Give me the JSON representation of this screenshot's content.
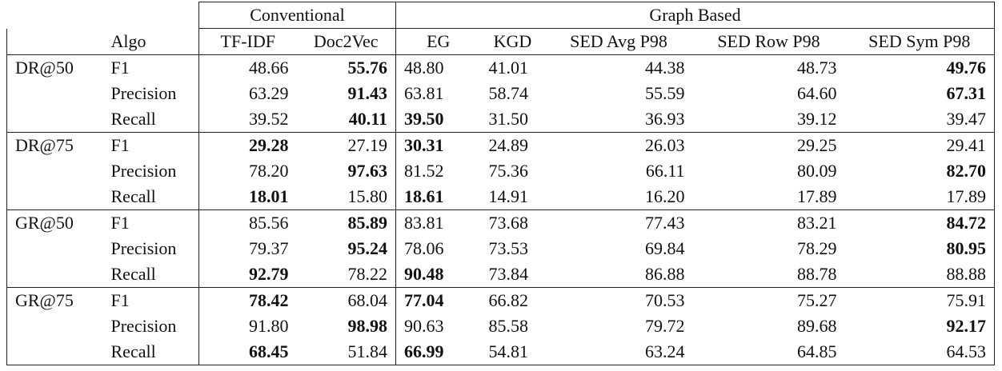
{
  "table": {
    "groups": [
      "Conventional",
      "Graph Based"
    ],
    "group_spans": [
      2,
      5
    ],
    "columns": [
      "Algo",
      "TF-IDF",
      "Doc2Vec",
      "EG",
      "KGD",
      "SED Avg P98",
      "SED Row P98",
      "SED Sym P98"
    ],
    "sections": [
      {
        "label": "DR@50",
        "rows": [
          {
            "metric": "F1",
            "cells": [
              "48.66",
              {
                "text": "55.76",
                "bold": true
              },
              "48.80",
              "41.01",
              "44.38",
              "48.73",
              {
                "text": "49.76",
                "bold": true
              }
            ]
          },
          {
            "metric": "Precision",
            "cells": [
              "63.29",
              {
                "text": "91.43",
                "bold": true
              },
              "63.81",
              "58.74",
              "55.59",
              "64.60",
              {
                "text": "67.31",
                "bold": true
              }
            ]
          },
          {
            "metric": "Recall",
            "cells": [
              "39.52",
              {
                "text": "40.11",
                "bold": true
              },
              {
                "text": "39.50",
                "bold": true
              },
              "31.50",
              "36.93",
              "39.12",
              "39.47"
            ]
          }
        ]
      },
      {
        "label": "DR@75",
        "rows": [
          {
            "metric": "F1",
            "cells": [
              {
                "text": "29.28",
                "bold": true
              },
              "27.19",
              {
                "text": "30.31",
                "bold": true
              },
              "24.89",
              "26.03",
              "29.25",
              "29.41"
            ]
          },
          {
            "metric": "Precision",
            "cells": [
              "78.20",
              {
                "text": "97.63",
                "bold": true
              },
              "81.52",
              "75.36",
              "66.11",
              "80.09",
              {
                "text": "82.70",
                "bold": true
              }
            ]
          },
          {
            "metric": "Recall",
            "cells": [
              {
                "text": "18.01",
                "bold": true
              },
              "15.80",
              {
                "text": "18.61",
                "bold": true
              },
              "14.91",
              "16.20",
              "17.89",
              "17.89"
            ]
          }
        ]
      },
      {
        "label": "GR@50",
        "rows": [
          {
            "metric": "F1",
            "cells": [
              "85.56",
              {
                "text": "85.89",
                "bold": true
              },
              "83.81",
              "73.68",
              "77.43",
              "83.21",
              {
                "text": "84.72",
                "bold": true
              }
            ]
          },
          {
            "metric": "Precision",
            "cells": [
              "79.37",
              {
                "text": "95.24",
                "bold": true
              },
              "78.06",
              "73.53",
              "69.84",
              "78.29",
              {
                "text": "80.95",
                "bold": true
              }
            ]
          },
          {
            "metric": "Recall",
            "cells": [
              {
                "text": "92.79",
                "bold": true
              },
              "78.22",
              {
                "text": "90.48",
                "bold": true
              },
              "73.84",
              "86.88",
              "88.78",
              "88.88"
            ]
          }
        ]
      },
      {
        "label": "GR@75",
        "rows": [
          {
            "metric": "F1",
            "cells": [
              {
                "text": "78.42",
                "bold": true
              },
              "68.04",
              {
                "text": "77.04",
                "bold": true
              },
              "66.82",
              "70.53",
              "75.27",
              "75.91"
            ]
          },
          {
            "metric": "Precision",
            "cells": [
              "91.80",
              {
                "text": "98.98",
                "bold": true
              },
              "90.63",
              "85.58",
              "79.72",
              "89.68",
              {
                "text": "92.17",
                "bold": true
              }
            ]
          },
          {
            "metric": "Recall",
            "cells": [
              {
                "text": "68.45",
                "bold": true
              },
              "51.84",
              {
                "text": "66.99",
                "bold": true
              },
              "54.81",
              "63.24",
              "64.85",
              "64.53"
            ]
          }
        ]
      }
    ]
  }
}
